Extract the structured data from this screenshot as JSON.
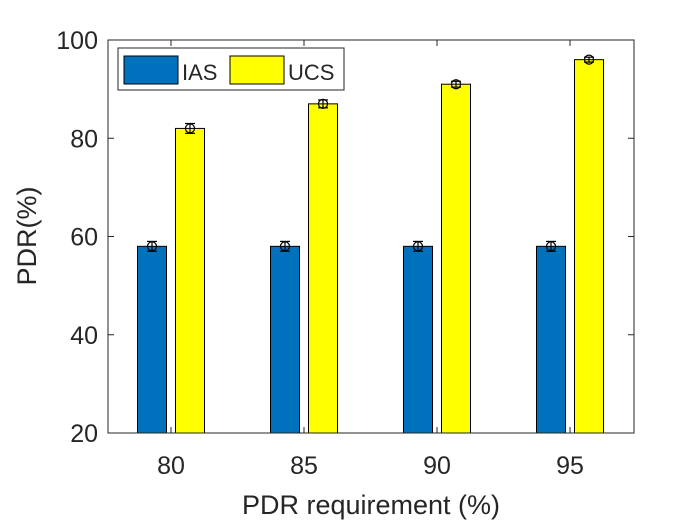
{
  "chart_data": {
    "type": "bar",
    "title": "",
    "xlabel": "PDR requirement (%)",
    "ylabel": "PDR(%)",
    "categories": [
      "80",
      "85",
      "90",
      "95"
    ],
    "ylim": [
      20,
      100
    ],
    "yticks": [
      "20",
      "40",
      "60",
      "80",
      "100"
    ],
    "grid": false,
    "legend_position": "top-left",
    "series": [
      {
        "name": "IAS",
        "color": "#0072BD",
        "values": [
          58,
          58,
          58,
          58
        ],
        "errors": [
          1,
          1,
          1,
          1
        ]
      },
      {
        "name": "UCS",
        "color": "#FFFF00",
        "values": [
          82,
          87,
          91,
          96
        ],
        "errors": [
          1,
          0.8,
          0.6,
          0.5
        ]
      }
    ]
  }
}
